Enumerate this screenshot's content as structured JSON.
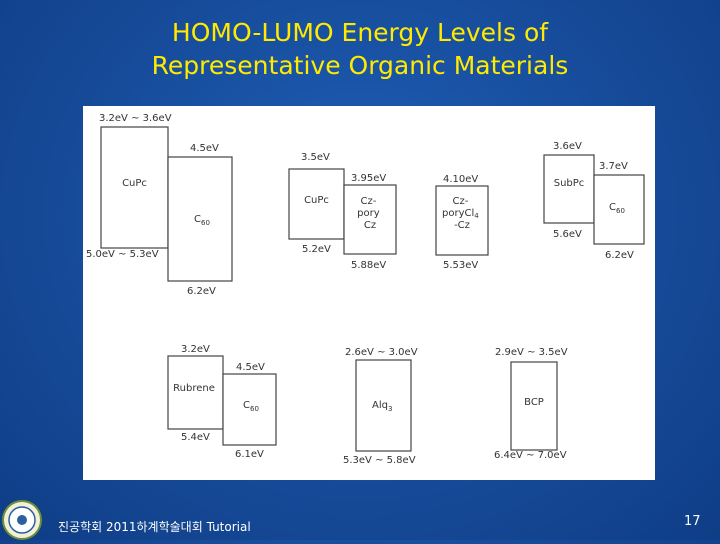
{
  "slide": {
    "title_line1": "HOMO-LUMO Energy Levels of",
    "title_line2": "Representative Organic Materials",
    "footer": "진공학회 2011하계학술대회 Tutorial",
    "page_number": "17",
    "colors": {
      "background": "#1a54a6",
      "title": "#ffea00",
      "panel": "#ffffff",
      "box_stroke": "#444444"
    }
  },
  "diagram": {
    "groups": [
      {
        "boxes": [
          {
            "material": "CuPc",
            "sub": "",
            "lumo": "3.2eV ~ 3.6eV",
            "homo": "5.0eV ~ 5.3eV"
          },
          {
            "material": "C",
            "sub": "60",
            "lumo": "4.5eV",
            "homo": "6.2eV"
          }
        ]
      },
      {
        "boxes": [
          {
            "material": "CuPc",
            "sub": "",
            "lumo": "3.5eV",
            "homo": "5.2eV"
          },
          {
            "material": "Cz-\npory\nCz",
            "sub": "",
            "lumo": "3.95eV",
            "homo": "5.88eV"
          }
        ]
      },
      {
        "boxes": [
          {
            "material": "Cz-\nporyCl4\n-Cz",
            "sub": "",
            "lumo": "4.10eV",
            "homo": "5.53eV"
          }
        ]
      },
      {
        "boxes": [
          {
            "material": "SubPc",
            "sub": "",
            "lumo": "3.6eV",
            "homo": "5.6eV"
          },
          {
            "material": "C",
            "sub": "60",
            "lumo": "3.7eV",
            "homo": "6.2eV"
          }
        ]
      },
      {
        "boxes": [
          {
            "material": "Rubrene",
            "sub": "",
            "lumo": "3.2eV",
            "homo": "5.4eV"
          },
          {
            "material": "C",
            "sub": "60",
            "lumo": "4.5eV",
            "homo": "6.1eV"
          }
        ]
      },
      {
        "boxes": [
          {
            "material": "Alq",
            "sub": "3",
            "lumo": "2.6eV ~ 3.0eV",
            "homo": "5.3eV ~ 5.8eV"
          }
        ]
      },
      {
        "boxes": [
          {
            "material": "BCP",
            "sub": "",
            "lumo": "2.9eV ~ 3.5eV",
            "homo": "6.4eV ~ 7.0eV"
          }
        ]
      }
    ]
  }
}
